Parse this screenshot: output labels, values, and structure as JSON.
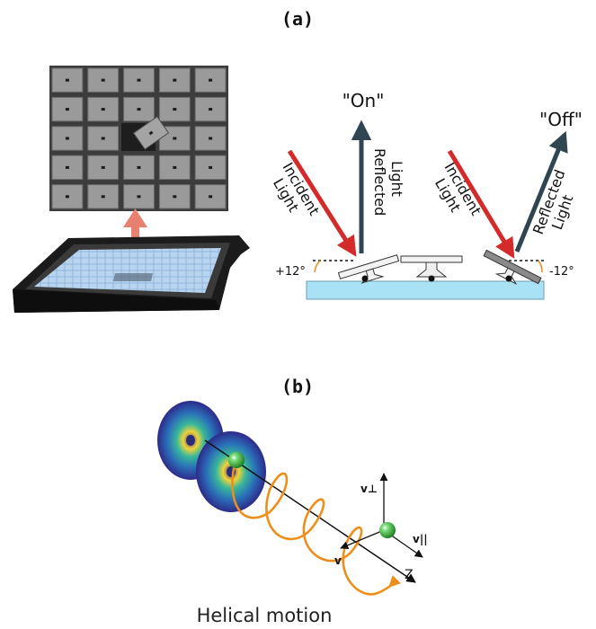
{
  "panel_a": {
    "label": "(a)",
    "on_label": "\"On\"",
    "off_label": "\"Off\"",
    "incident_word1": "Incident",
    "incident_word2": "Light",
    "reflected_word1": "Reflected",
    "reflected_word2": "Light",
    "angle_plus": "+12°",
    "angle_minus": "-12°"
  },
  "panel_b": {
    "label": "(b)",
    "v_perp": "v⊥",
    "v_par": "v||",
    "v_vec": "v",
    "z_axis": "Z",
    "caption": "Helical motion"
  },
  "colors": {
    "incident_arrow": "#d42a2a",
    "reflected_arrow": "#2f4550",
    "substrate": "#a9e2f4",
    "dmd_cell": "#9a9a9a",
    "dmd_frame": "#6b6b6b",
    "upward_arrow": "#e8806f",
    "helix": "#ee8f1c",
    "particle": "#3bb53b"
  }
}
